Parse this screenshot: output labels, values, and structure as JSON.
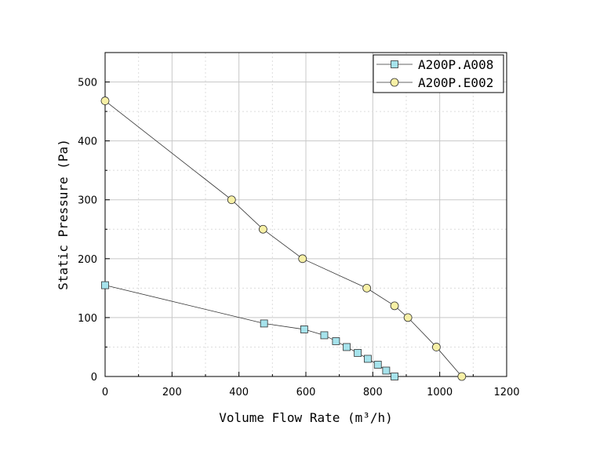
{
  "chart_data": {
    "type": "line",
    "title": "",
    "xlabel": "Volume Flow Rate (m³/h)",
    "ylabel": "Static Pressure (Pa)",
    "xlim": [
      0,
      1200
    ],
    "ylim": [
      0,
      550
    ],
    "x_ticks": [
      "0",
      "200",
      "400",
      "600",
      "800",
      "1000",
      "1200"
    ],
    "y_ticks": [
      "0",
      "100",
      "200",
      "300",
      "400",
      "500"
    ],
    "grid": true,
    "legend_position": "top-right",
    "series": [
      {
        "name": "A200P.A008",
        "marker": "square",
        "color": "#a6e3ec",
        "x": [
          0,
          475,
          595,
          655,
          690,
          722,
          755,
          785,
          815,
          840,
          865
        ],
        "y": [
          155,
          90,
          80,
          70,
          60,
          50,
          40,
          30,
          20,
          10,
          0
        ]
      },
      {
        "name": "A200P.E002",
        "marker": "circle",
        "color": "#f7f0a6",
        "x": [
          0,
          378,
          472,
          590,
          782,
          865,
          905,
          990,
          1066
        ],
        "y": [
          468,
          300,
          250,
          200,
          150,
          120,
          100,
          50,
          0
        ]
      }
    ]
  }
}
